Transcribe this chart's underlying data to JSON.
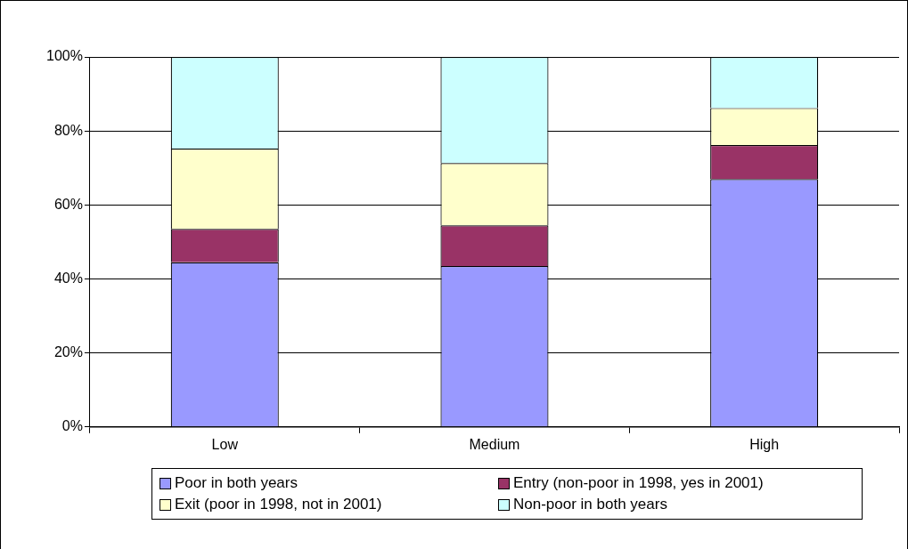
{
  "chart_data": {
    "type": "bar",
    "stacked": true,
    "categories": [
      "Low",
      "Medium",
      "High"
    ],
    "series": [
      {
        "name": "Poor in both years",
        "color": "#9999ff",
        "values": [
          44.5,
          43.5,
          67
        ]
      },
      {
        "name": "Entry (non-poor in 1998, yes in 2001)",
        "color": "#993366",
        "values": [
          9,
          11,
          9.2
        ]
      },
      {
        "name": "Exit (poor in 1998, not in 2001)",
        "color": "#ffffcc",
        "values": [
          21.7,
          16.8,
          10
        ]
      },
      {
        "name": "Non-poor in both years",
        "color": "#ccffff",
        "values": [
          24.8,
          28.7,
          13.8
        ]
      }
    ],
    "ylim": [
      0,
      100
    ],
    "yticks": [
      {
        "value": 0,
        "label": "0%"
      },
      {
        "value": 20,
        "label": "20%"
      },
      {
        "value": 40,
        "label": "40%"
      },
      {
        "value": 60,
        "label": "60%"
      },
      {
        "value": 80,
        "label": "80%"
      },
      {
        "value": 100,
        "label": "100%"
      }
    ],
    "grid": "y",
    "legend": "bottom"
  }
}
